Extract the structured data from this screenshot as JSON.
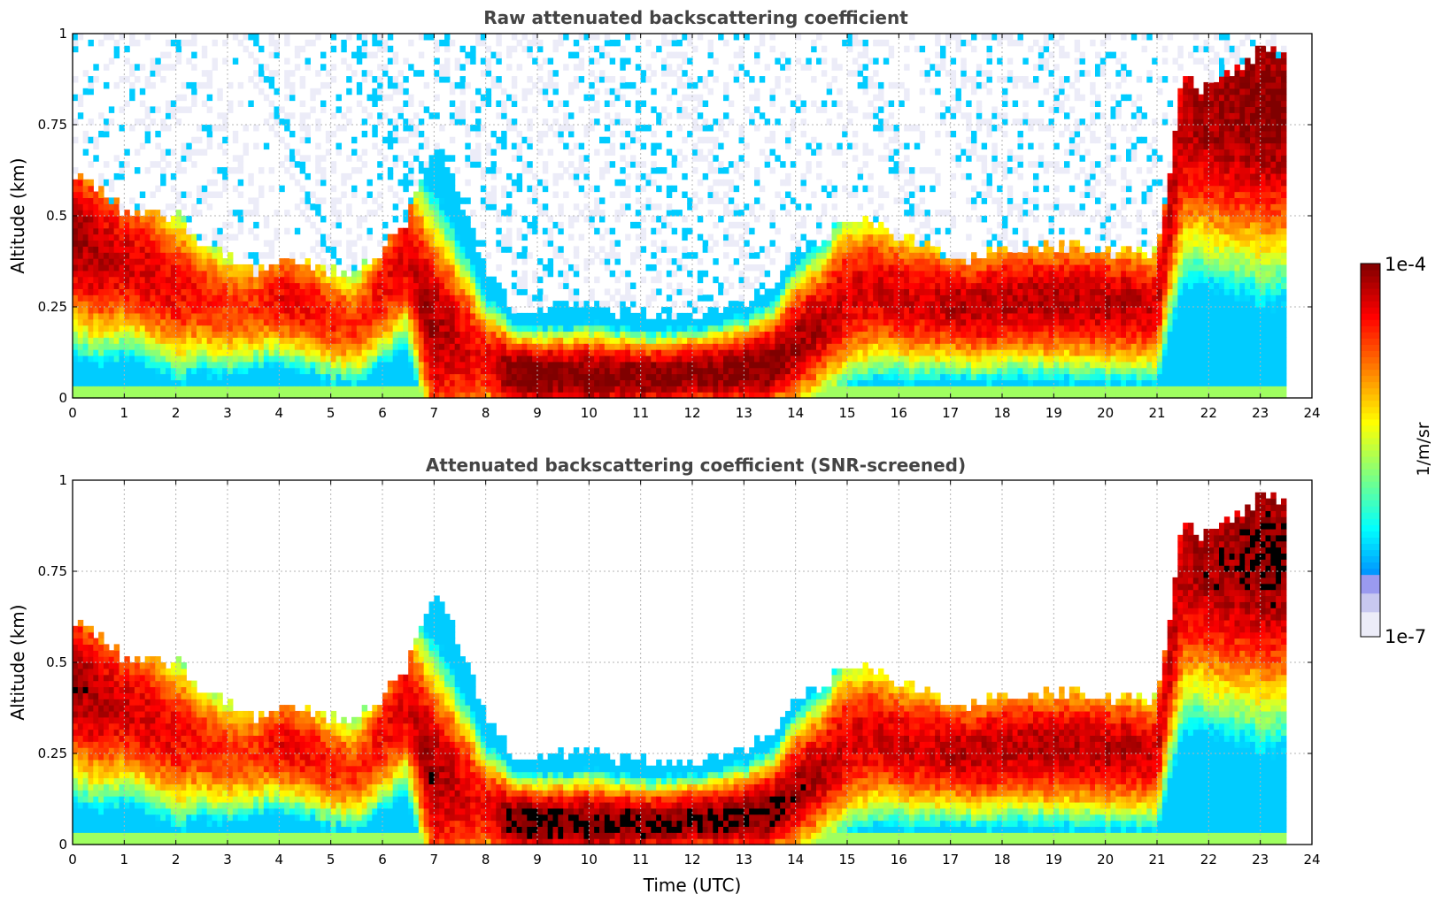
{
  "chart_data": [
    {
      "type": "heatmap",
      "title": "Raw attenuated backscattering coefficient",
      "xlabel": "",
      "ylabel": "Altitude (km)",
      "xlim": [
        0,
        24
      ],
      "ylim": [
        0,
        1
      ],
      "x_ticks": [
        "0",
        "1",
        "2",
        "3",
        "4",
        "5",
        "6",
        "7",
        "8",
        "9",
        "10",
        "11",
        "12",
        "13",
        "14",
        "15",
        "16",
        "17",
        "18",
        "19",
        "20",
        "21",
        "22",
        "23",
        "24"
      ],
      "y_ticks": [
        "0",
        "0.25",
        "0.5",
        "0.75",
        "1"
      ],
      "x_tick_values": [
        0,
        1,
        2,
        3,
        4,
        5,
        6,
        7,
        8,
        9,
        10,
        11,
        12,
        13,
        14,
        15,
        16,
        17,
        18,
        19,
        20,
        21,
        22,
        23,
        24
      ],
      "y_tick_values": [
        0,
        0.25,
        0.5,
        0.75,
        1
      ],
      "grid": true,
      "data_end_hour": 23.5,
      "noise_layer": "sparse blue speckle above the aerosol layer",
      "layer_profile": {
        "hours": [
          0,
          0.5,
          1,
          1.5,
          2,
          2.5,
          3,
          3.5,
          4,
          4.5,
          5,
          5.5,
          6,
          6.5,
          7,
          7.5,
          8,
          8.5,
          9,
          9.5,
          10,
          10.5,
          11,
          11.5,
          12,
          12.5,
          13,
          13.5,
          14,
          14.5,
          15,
          15.5,
          16,
          16.5,
          17,
          17.5,
          18,
          18.5,
          19,
          19.5,
          20,
          20.5,
          21,
          21.5,
          22,
          22.5,
          23,
          23.5
        ],
        "top_km": [
          0.62,
          0.58,
          0.52,
          0.5,
          0.5,
          0.42,
          0.4,
          0.35,
          0.38,
          0.37,
          0.35,
          0.34,
          0.4,
          0.5,
          0.7,
          0.55,
          0.35,
          0.25,
          0.24,
          0.25,
          0.25,
          0.24,
          0.23,
          0.22,
          0.22,
          0.24,
          0.25,
          0.3,
          0.4,
          0.42,
          0.5,
          0.48,
          0.45,
          0.43,
          0.38,
          0.39,
          0.4,
          0.41,
          0.42,
          0.43,
          0.4,
          0.4,
          0.4,
          0.88,
          0.85,
          0.9,
          0.95,
          0.95
        ],
        "peak_km": [
          0.45,
          0.4,
          0.38,
          0.35,
          0.3,
          0.28,
          0.25,
          0.25,
          0.28,
          0.26,
          0.22,
          0.2,
          0.3,
          0.4,
          0.18,
          0.15,
          0.1,
          0.07,
          0.06,
          0.06,
          0.06,
          0.06,
          0.06,
          0.06,
          0.07,
          0.07,
          0.08,
          0.09,
          0.15,
          0.2,
          0.28,
          0.3,
          0.28,
          0.27,
          0.26,
          0.25,
          0.27,
          0.27,
          0.27,
          0.27,
          0.26,
          0.26,
          0.25,
          0.78,
          0.78,
          0.78,
          0.8,
          0.8
        ],
        "peak_intensity_log10": [
          -4.1,
          -4.2,
          -4.3,
          -4.3,
          -4.4,
          -4.5,
          -4.6,
          -4.6,
          -4.4,
          -4.4,
          -4.5,
          -4.6,
          -4.4,
          -4.3,
          -4.1,
          -4.3,
          -4.4,
          -4.0,
          -3.9,
          -4.0,
          -4.0,
          -4.0,
          -4.0,
          -4.0,
          -4.0,
          -4.0,
          -4.0,
          -4.0,
          -4.1,
          -4.2,
          -4.3,
          -4.3,
          -4.3,
          -4.3,
          -4.2,
          -4.2,
          -4.2,
          -4.2,
          -4.2,
          -4.2,
          -4.2,
          -4.2,
          -4.3,
          -4.2,
          -4.1,
          -4.1,
          -4.0,
          -4.0
        ]
      }
    },
    {
      "type": "heatmap",
      "title": "Attenuated backscattering coefficient (SNR-screened)",
      "xlabel": "Time (UTC)",
      "ylabel": "Altitude (km)",
      "xlim": [
        0,
        24
      ],
      "ylim": [
        0,
        1
      ],
      "x_ticks": [
        "0",
        "1",
        "2",
        "3",
        "4",
        "5",
        "6",
        "7",
        "8",
        "9",
        "10",
        "11",
        "12",
        "13",
        "14",
        "15",
        "16",
        "17",
        "18",
        "19",
        "20",
        "21",
        "22",
        "23",
        "24"
      ],
      "y_ticks": [
        "0",
        "0.25",
        "0.5",
        "0.75",
        "1"
      ],
      "x_tick_values": [
        0,
        1,
        2,
        3,
        4,
        5,
        6,
        7,
        8,
        9,
        10,
        11,
        12,
        13,
        14,
        15,
        16,
        17,
        18,
        19,
        20,
        21,
        22,
        23,
        24
      ],
      "y_tick_values": [
        0,
        0.25,
        0.5,
        0.75,
        1
      ],
      "grid": true,
      "data_end_hour": 23.5,
      "noise_layer": "removed by SNR screening",
      "saturation_color": "#000000",
      "saturation_threshold_log10": -4.0,
      "layer_profile_ref": 0
    }
  ],
  "colorbar": {
    "label": "1/m/sr",
    "min_label": "1e-7",
    "max_label": "1e-4",
    "scale": "log",
    "colormap": "jet",
    "range_log10": [
      -7,
      -4
    ],
    "low_colors": [
      "#ececf8",
      "#c8c8f0",
      "#9a9af0"
    ]
  }
}
